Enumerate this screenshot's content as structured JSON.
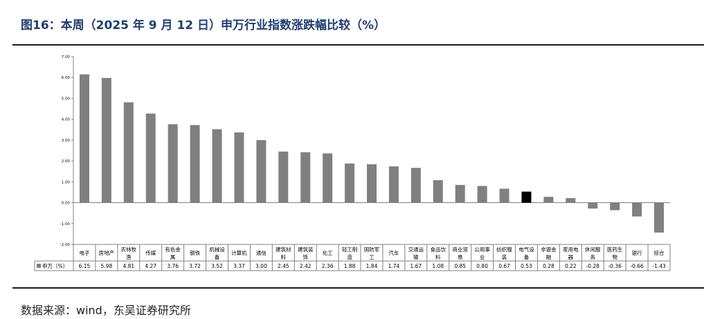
{
  "title": "图16：本周（2025 年 9 月 12 日）申万行业指数涨跌幅比较（%）",
  "source": "数据来源：wind，东吴证券研究所",
  "chart_data": {
    "type": "bar",
    "categories": [
      "电子",
      "房地产",
      "农林牧渔",
      "传媒",
      "有色金属",
      "钢铁",
      "机械设备",
      "计算机",
      "通信",
      "建筑材料",
      "建筑装饰",
      "化工",
      "轻工制造",
      "国防军工",
      "汽车",
      "交通运输",
      "食品饮料",
      "商业贸易",
      "公用事业",
      "纺织服装",
      "电气设备",
      "非银金融",
      "家用电器",
      "休闲服务",
      "医药生物",
      "银行",
      "综合"
    ],
    "category_lines": [
      [
        "电子"
      ],
      [
        "房地产"
      ],
      [
        "农林牧",
        "渔"
      ],
      [
        "传媒"
      ],
      [
        "有色金",
        "属"
      ],
      [
        "钢铁"
      ],
      [
        "机械设",
        "备"
      ],
      [
        "计算机"
      ],
      [
        "通信"
      ],
      [
        "建筑材",
        "料"
      ],
      [
        "建筑装",
        "饰"
      ],
      [
        "化工"
      ],
      [
        "轻工制",
        "造"
      ],
      [
        "国防军",
        "工"
      ],
      [
        "汽车"
      ],
      [
        "交通运",
        "输"
      ],
      [
        "食品饮",
        "料"
      ],
      [
        "商业贸",
        "易"
      ],
      [
        "公用事",
        "业"
      ],
      [
        "纺织服",
        "装"
      ],
      [
        "电气设",
        "备"
      ],
      [
        "非银金",
        "融"
      ],
      [
        "家用电",
        "器"
      ],
      [
        "休闲服",
        "务"
      ],
      [
        "医药生",
        "物"
      ],
      [
        "银行"
      ],
      [
        "综合"
      ]
    ],
    "series": [
      {
        "name": "申万（%）",
        "values": [
          6.15,
          5.98,
          4.81,
          4.27,
          3.76,
          3.72,
          3.52,
          3.37,
          3.0,
          2.45,
          2.42,
          2.36,
          1.88,
          1.84,
          1.74,
          1.67,
          1.08,
          0.85,
          0.8,
          0.67,
          0.53,
          0.28,
          0.22,
          -0.28,
          -0.36,
          -0.66,
          -1.43
        ]
      }
    ],
    "value_labels": [
      "6.15",
      "5.98",
      "4.81",
      "4.27",
      "3.76",
      "3.72",
      "3.52",
      "3.37",
      "3.00",
      "2.45",
      "2.42",
      "2.36",
      "1.88",
      "1.84",
      "1.74",
      "1.67",
      "1.08",
      "0.85",
      "0.80",
      "0.67",
      "0.53",
      "0.28",
      "0.22",
      "-0.28",
      "-0.36",
      "-0.66",
      "-1.43"
    ],
    "yticks": [
      "7.00",
      "6.00",
      "5.00",
      "4.00",
      "3.00",
      "2.00",
      "1.00",
      "0.00",
      "-1.00",
      "-2.00"
    ],
    "ylim": [
      -2,
      7
    ],
    "highlight_index": 20,
    "colors": {
      "bar": "#808080",
      "highlight": "#000000",
      "axis": "#808080",
      "table_border": "#808080"
    }
  }
}
